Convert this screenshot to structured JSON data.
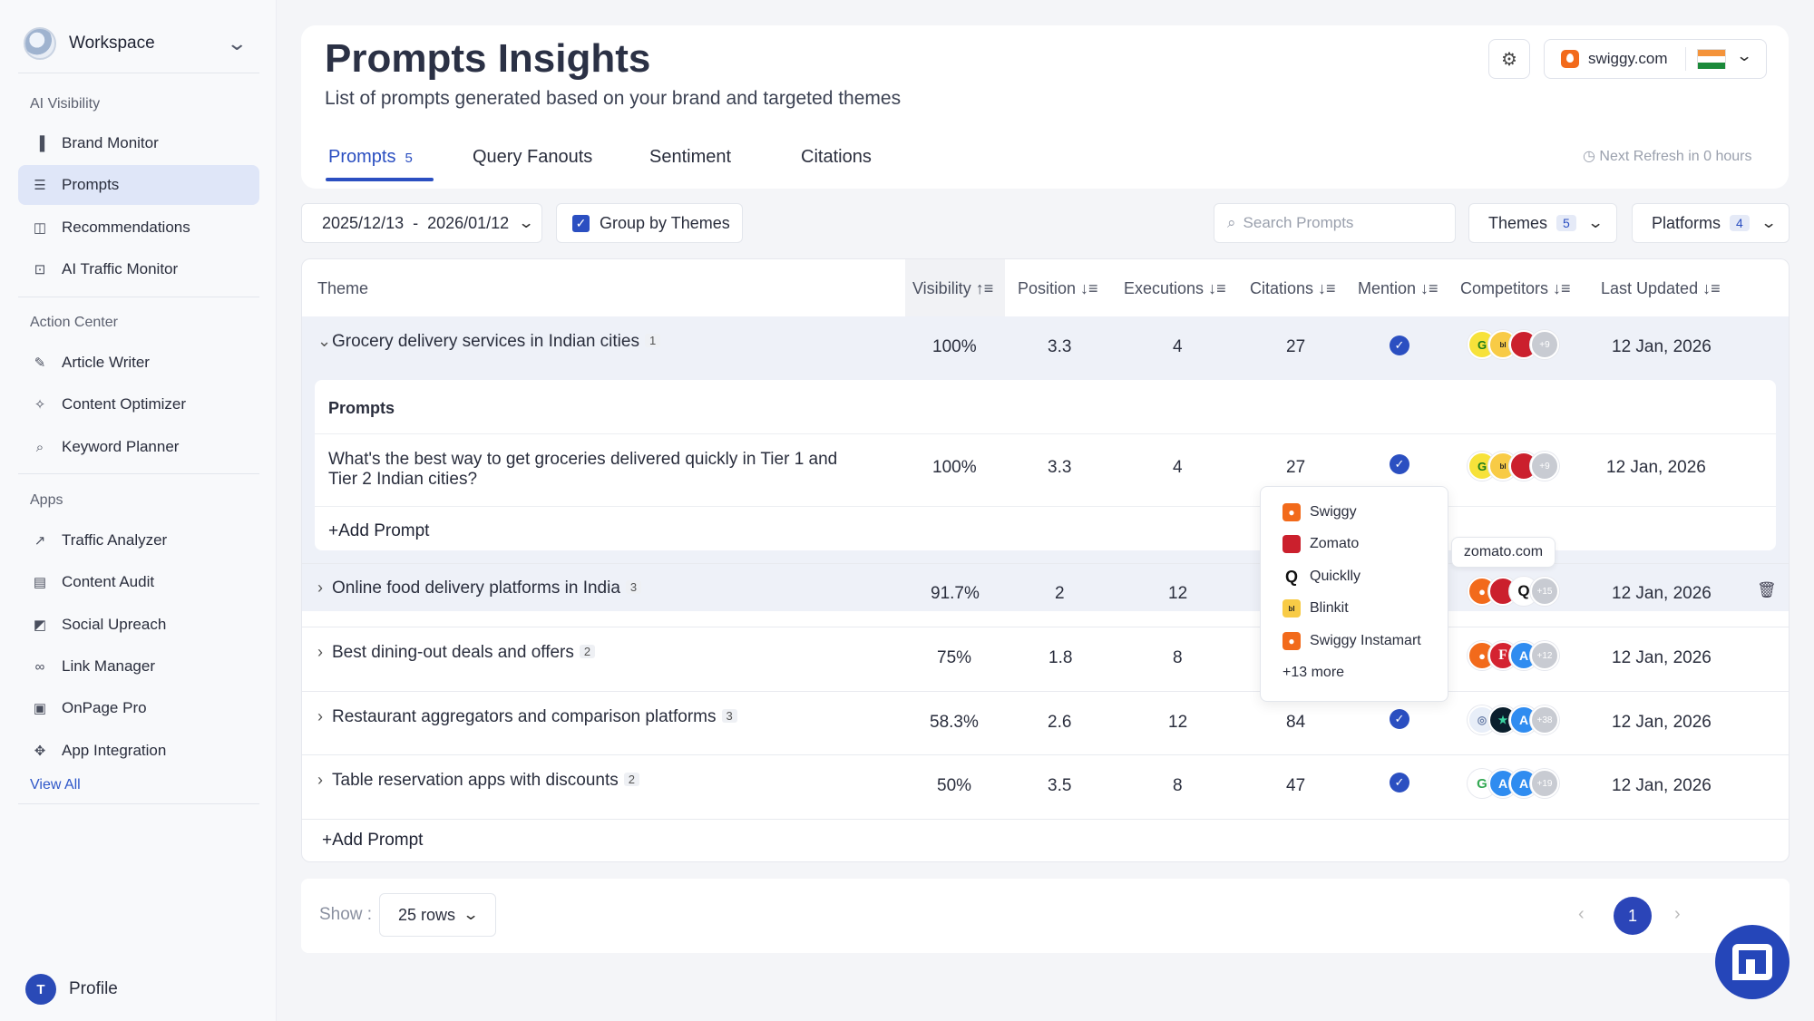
{
  "sidebar": {
    "workspace": "Workspace",
    "sections": {
      "ai_visibility": "AI Visibility",
      "action_center": "Action Center",
      "apps": "Apps"
    },
    "items": {
      "brand_monitor": "Brand Monitor",
      "prompts": "Prompts",
      "recommendations": "Recommendations",
      "ai_traffic_monitor": "AI Traffic Monitor",
      "article_writer": "Article Writer",
      "content_optimizer": "Content Optimizer",
      "keyword_planner": "Keyword Planner",
      "traffic_analyzer": "Traffic Analyzer",
      "content_audit": "Content Audit",
      "social_upreach": "Social Upreach",
      "link_manager": "Link Manager",
      "onpage_pro": "OnPage Pro",
      "app_integration": "App Integration"
    },
    "view_all": "View All",
    "profile_initial": "T",
    "profile": "Profile"
  },
  "header": {
    "title": "Prompts Insights",
    "subtitle": "List of prompts generated based on your brand and targeted themes",
    "domain": "swiggy.com",
    "tabs": {
      "prompts": "Prompts",
      "prompts_count": "5",
      "query_fanouts": "Query Fanouts",
      "sentiment": "Sentiment",
      "citations": "Citations"
    },
    "next_refresh": "Next Refresh in 0 hours"
  },
  "filters": {
    "date_range": "2025/12/13  -  2026/01/12",
    "group_by": "Group by Themes",
    "search_placeholder": "Search Prompts",
    "themes": "Themes",
    "themes_count": "5",
    "platforms": "Platforms",
    "platforms_count": "4"
  },
  "table": {
    "columns": {
      "theme": "Theme",
      "visibility": "Visibility",
      "position": "Position",
      "executions": "Executions",
      "citations": "Citations",
      "mention": "Mention",
      "competitors": "Competitors",
      "last_updated": "Last Updated"
    },
    "rows": [
      {
        "theme": "Grocery delivery services in Indian cities",
        "count": "1",
        "visibility": "100%",
        "position": "3.3",
        "executions": "4",
        "citations": "27",
        "more": "+9",
        "updated": "12 Jan, 2026"
      },
      {
        "theme": "Online food delivery platforms in India",
        "count": "3",
        "visibility": "91.7%",
        "position": "2",
        "executions": "12",
        "citations": "",
        "more": "+15",
        "updated": "12 Jan, 2026"
      },
      {
        "theme": "Best dining-out deals and offers",
        "count": "2",
        "visibility": "75%",
        "position": "1.8",
        "executions": "8",
        "citations": "",
        "more": "+12",
        "updated": "12 Jan, 2026"
      },
      {
        "theme": "Restaurant aggregators and comparison platforms",
        "count": "3",
        "visibility": "58.3%",
        "position": "2.6",
        "executions": "12",
        "citations": "84",
        "more": "+38",
        "updated": "12 Jan, 2026"
      },
      {
        "theme": "Table reservation apps with discounts",
        "count": "2",
        "visibility": "50%",
        "position": "3.5",
        "executions": "8",
        "citations": "47",
        "more": "+19",
        "updated": "12 Jan, 2026"
      }
    ],
    "inner": {
      "heading": "Prompts",
      "prompt_line1": "What's the best way to get groceries delivered quickly in Tier 1 and",
      "prompt_line2": "Tier 2 Indian cities?",
      "visibility": "100%",
      "position": "3.3",
      "executions": "4",
      "citations": "27",
      "more": "+9",
      "updated": "12 Jan, 2026",
      "add_prompt": "Add Prompt"
    },
    "add_prompt": "Add Prompt"
  },
  "popup": {
    "items": [
      "Swiggy",
      "Zomato",
      "Quicklly",
      "Blinkit",
      "Swiggy Instamart"
    ],
    "more": "+13 more"
  },
  "tooltip": "zomato.com",
  "footer": {
    "show": "Show :",
    "rows": "25 rows",
    "page": "1"
  },
  "colors": {
    "accent": "#2b4fc1",
    "swiggy": "#f26a1b",
    "zomato": "#cb202d",
    "blinkit": "#f8cb46"
  }
}
